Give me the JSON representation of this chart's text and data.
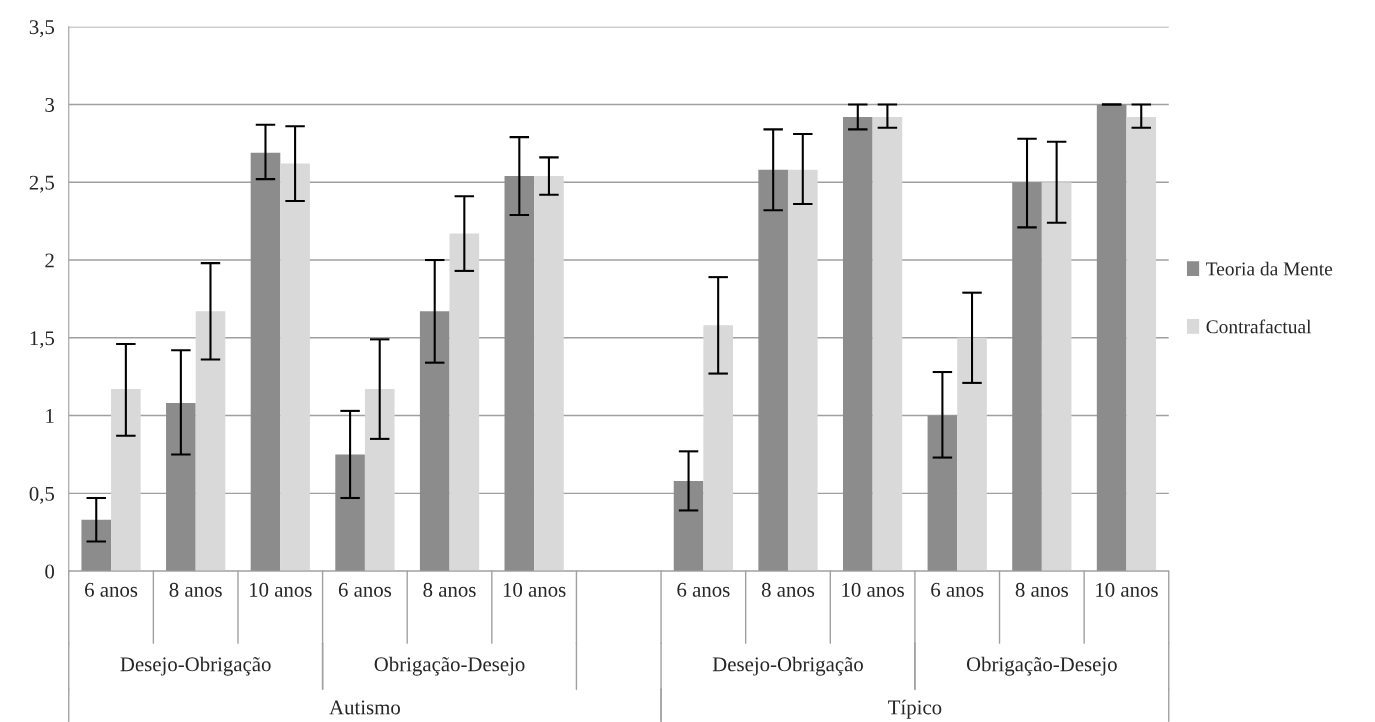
{
  "chart_data": {
    "type": "bar",
    "categories": [
      "6 anos",
      "8 anos",
      "10 anos",
      "6 anos",
      "8 anos",
      "10 anos",
      null,
      "6 anos",
      "8 anos",
      "10 anos",
      "6 anos",
      "8 anos",
      "10 anos"
    ],
    "series": [
      {
        "name": "Teoria da Mente",
        "color": "#8c8c8c",
        "values": [
          0.33,
          1.08,
          2.69,
          0.75,
          1.67,
          2.54,
          null,
          0.58,
          2.58,
          2.92,
          1.0,
          2.5,
          3.0
        ],
        "errors": [
          [
            0.19,
            0.47
          ],
          [
            0.75,
            1.42
          ],
          [
            2.52,
            2.87
          ],
          [
            0.47,
            1.03
          ],
          [
            1.34,
            2.0
          ],
          [
            2.29,
            2.79
          ],
          null,
          [
            0.39,
            0.77
          ],
          [
            2.32,
            2.84
          ],
          [
            2.84,
            3.0
          ],
          [
            0.73,
            1.28
          ],
          [
            2.21,
            2.78
          ],
          [
            3.0,
            3.0
          ]
        ]
      },
      {
        "name": "Contrafactual",
        "color": "#d9d9d9",
        "values": [
          1.17,
          1.67,
          2.62,
          1.17,
          2.17,
          2.54,
          null,
          1.58,
          2.58,
          2.92,
          1.5,
          2.5,
          2.92
        ],
        "errors": [
          [
            0.87,
            1.46
          ],
          [
            1.36,
            1.98
          ],
          [
            2.38,
            2.86
          ],
          [
            0.85,
            1.49
          ],
          [
            1.93,
            2.41
          ],
          [
            2.42,
            2.66
          ],
          null,
          [
            1.27,
            1.89
          ],
          [
            2.36,
            2.81
          ],
          [
            2.85,
            3.0
          ],
          [
            1.21,
            1.79
          ],
          [
            2.24,
            2.76
          ],
          [
            2.85,
            3.0
          ]
        ]
      }
    ],
    "ylim": [
      0,
      3.5
    ],
    "yticks": [
      0,
      {
        "value": 0.5,
        "label": "0,5"
      },
      1,
      {
        "value": 1.5,
        "label": "1,5"
      },
      2,
      {
        "value": 2.5,
        "label": "2,5"
      },
      3,
      {
        "value": 3.5,
        "label": "3,5"
      }
    ],
    "grid": "y",
    "legend": "right",
    "annotations": [
      "Desejo-Obrigação",
      "Obrigação-Desejo",
      "Desejo-Obrigação",
      "Obrigação-Desejo",
      "Autismo",
      "Típico"
    ]
  }
}
